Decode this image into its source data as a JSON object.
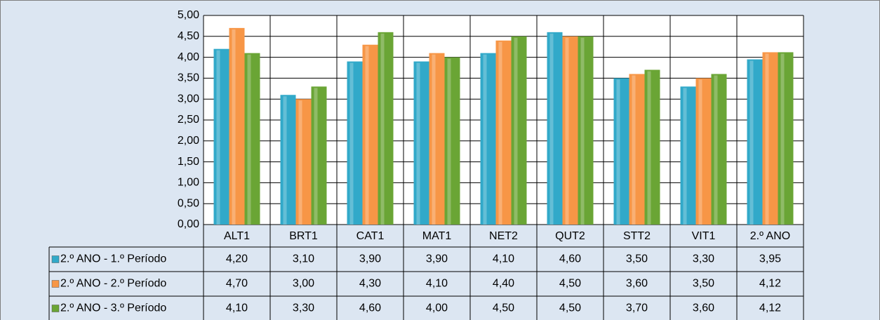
{
  "chart_data": {
    "type": "bar",
    "categories": [
      "ALT1",
      "BRT1",
      "CAT1",
      "MAT1",
      "NET2",
      "QUT2",
      "STT2",
      "VIT1",
      "2.º ANO"
    ],
    "series": [
      {
        "name": "2.º ANO - 1.º Período",
        "color": "#31a9c9",
        "values": [
          4.2,
          3.1,
          3.9,
          3.9,
          4.1,
          4.6,
          3.5,
          3.3,
          3.95
        ],
        "value_labels": [
          "4,20",
          "3,10",
          "3,90",
          "3,90",
          "4,10",
          "4,60",
          "3,50",
          "3,30",
          "3,95"
        ]
      },
      {
        "name": "2.º ANO - 2.º Período",
        "color": "#f79646",
        "values": [
          4.7,
          3.0,
          4.3,
          4.1,
          4.4,
          4.5,
          3.6,
          3.5,
          4.12
        ],
        "value_labels": [
          "4,70",
          "3,00",
          "4,30",
          "4,10",
          "4,40",
          "4,50",
          "3,60",
          "3,50",
          "4,12"
        ]
      },
      {
        "name": "2.º ANO - 3.º Período",
        "color": "#6aa535",
        "values": [
          4.1,
          3.3,
          4.6,
          4.0,
          4.5,
          4.5,
          3.7,
          3.6,
          4.12
        ],
        "value_labels": [
          "4,10",
          "3,30",
          "4,60",
          "4,00",
          "4,50",
          "4,50",
          "3,70",
          "3,60",
          "4,12"
        ]
      }
    ],
    "ylim": [
      0,
      5
    ],
    "yticks": [
      {
        "value": 0,
        "label": "0,00"
      },
      {
        "value": 0.5,
        "label": "0,50"
      },
      {
        "value": 1,
        "label": "1,00"
      },
      {
        "value": 1.5,
        "label": "1,50"
      },
      {
        "value": 2,
        "label": "2,00"
      },
      {
        "value": 2.5,
        "label": "2,50"
      },
      {
        "value": 3,
        "label": "3,00"
      },
      {
        "value": 3.5,
        "label": "3,50"
      },
      {
        "value": 4,
        "label": "4,00"
      },
      {
        "value": 4.5,
        "label": "4,50"
      },
      {
        "value": 5,
        "label": "5,00"
      }
    ],
    "grid": true
  }
}
